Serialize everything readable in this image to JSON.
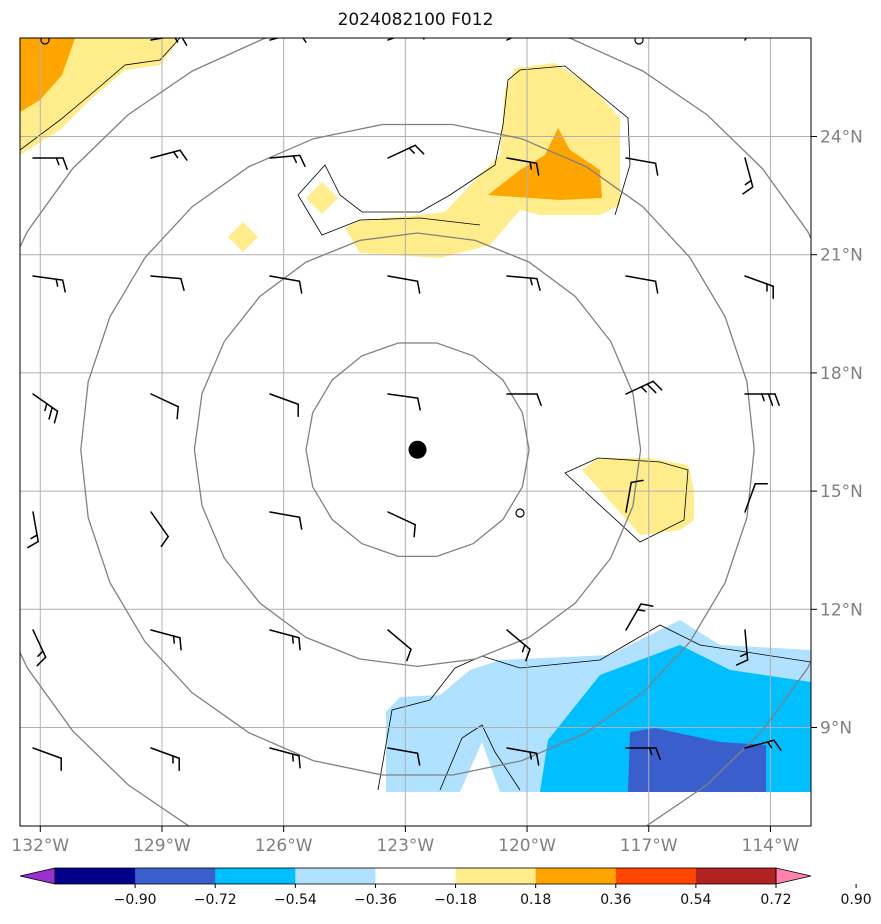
{
  "title": "2024082100 F012",
  "map": {
    "lon_range": [
      -132.5,
      -113.0
    ],
    "lat_range": [
      6.5,
      26.5
    ],
    "lon_ticks": [
      {
        "value": -132,
        "label": "132°W"
      },
      {
        "value": -129,
        "label": "129°W"
      },
      {
        "value": -126,
        "label": "126°W"
      },
      {
        "value": -123,
        "label": "123°W"
      },
      {
        "value": -120,
        "label": "120°W"
      },
      {
        "value": -117,
        "label": "117°W"
      },
      {
        "value": -114,
        "label": "114°W"
      }
    ],
    "lat_ticks": [
      {
        "value": 24,
        "label": "24°N"
      },
      {
        "value": 21,
        "label": "21°N"
      },
      {
        "value": 18,
        "label": "18°N"
      },
      {
        "value": 15,
        "label": "15°N"
      },
      {
        "value": 12,
        "label": "12°N"
      },
      {
        "value": 9,
        "label": "9°N"
      }
    ],
    "storm_center": {
      "lon": -122.7,
      "lat": 16.05
    },
    "range_ring_radii_deg": [
      2.75,
      5.5,
      8.3,
      11.1
    ],
    "gridline_color": "#b0b0b0",
    "ring_color": "#808080"
  },
  "colorbar": {
    "levels": [
      "−0.90",
      "−0.72",
      "−0.54",
      "−0.36",
      "−0.18",
      "0.18",
      "0.36",
      "0.54",
      "0.72",
      "0.90"
    ],
    "colors": [
      "#9a30d0",
      "#00008b",
      "#3a5fcd",
      "#00bfff",
      "#b0e2ff",
      "#ffffff",
      "#ffec8b",
      "#ffa500",
      "#ff4500",
      "#b22222",
      "#ff82ab"
    ]
  }
}
